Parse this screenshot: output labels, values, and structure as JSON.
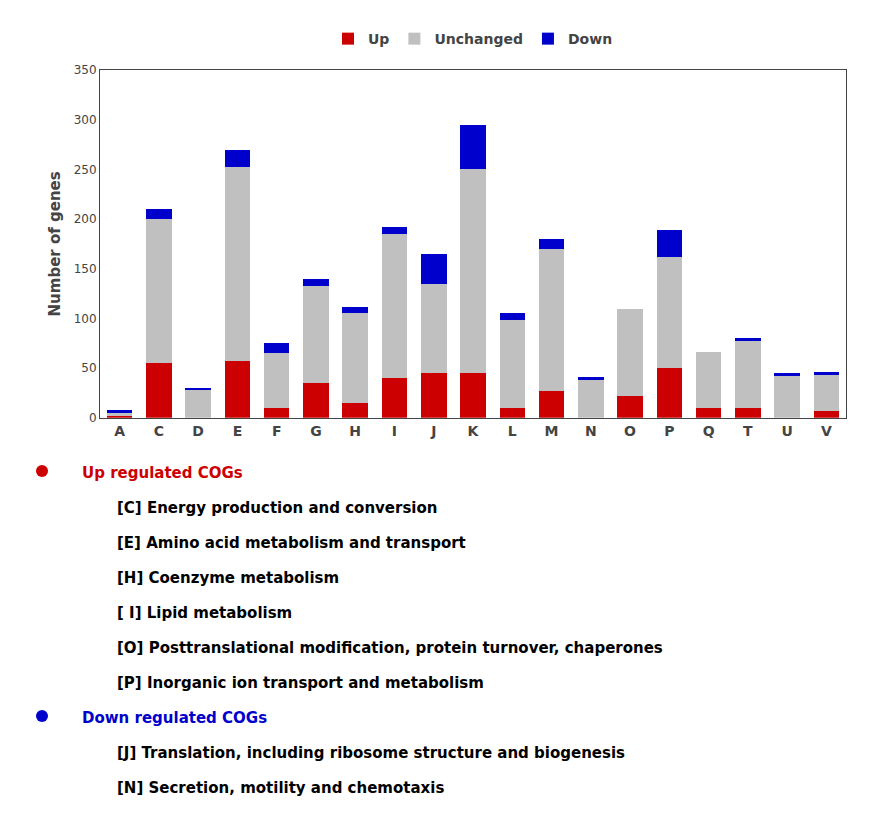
{
  "chart_data": {
    "type": "bar",
    "stacked": true,
    "grid": false,
    "legend": "top",
    "categories": [
      "A",
      "C",
      "D",
      "E",
      "F",
      "G",
      "H",
      "I",
      "J",
      "K",
      "L",
      "M",
      "N",
      "O",
      "P",
      "Q",
      "T",
      "U",
      "V"
    ],
    "series": [
      {
        "name": "Up",
        "color": "#cc0000",
        "values": [
          2,
          55,
          0,
          57,
          10,
          35,
          15,
          40,
          45,
          45,
          10,
          27,
          0,
          22,
          50,
          10,
          10,
          0,
          7
        ]
      },
      {
        "name": "Unchanged",
        "color": "#c0c0c0",
        "values": [
          3,
          145,
          28,
          195,
          55,
          98,
          90,
          145,
          90,
          205,
          88,
          143,
          38,
          88,
          112,
          56,
          68,
          43,
          37
        ]
      },
      {
        "name": "Down",
        "color": "#0000cc",
        "values": [
          3,
          10,
          2,
          18,
          10,
          7,
          7,
          7,
          30,
          45,
          7,
          10,
          3,
          0,
          27,
          0,
          2,
          2,
          2
        ]
      }
    ],
    "ylabel": "Number of genes",
    "ylim": [
      0,
      350
    ],
    "yticks": [
      0,
      50,
      100,
      150,
      200,
      250,
      300,
      350
    ],
    "annotations": [
      {
        "text": "Up regulated COGs",
        "color": "#cc0000",
        "items": [
          "[C] Energy production and conversion",
          "[E] Amino acid metabolism and transport",
          "[H] Coenzyme metabolism",
          "[ I] Lipid metabolism",
          "[O] Posttranslational modification, protein turnover, chaperones",
          "[P] Inorganic ion transport and metabolism"
        ]
      },
      {
        "text": "Down regulated COGs",
        "color": "#0000cc",
        "items": [
          "[J] Translation, including ribosome structure and biogenesis",
          "[N] Secretion, motility and chemotaxis"
        ]
      }
    ]
  }
}
